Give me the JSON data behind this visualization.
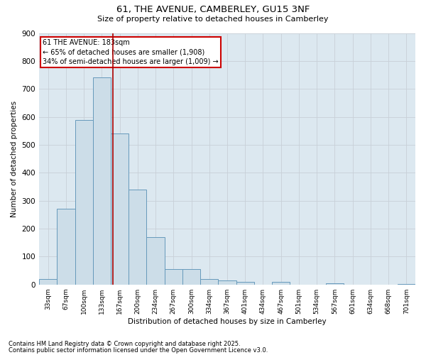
{
  "title1": "61, THE AVENUE, CAMBERLEY, GU15 3NF",
  "title2": "Size of property relative to detached houses in Camberley",
  "xlabel": "Distribution of detached houses by size in Camberley",
  "ylabel": "Number of detached properties",
  "categories": [
    "33sqm",
    "67sqm",
    "100sqm",
    "133sqm",
    "167sqm",
    "200sqm",
    "234sqm",
    "267sqm",
    "300sqm",
    "334sqm",
    "367sqm",
    "401sqm",
    "434sqm",
    "467sqm",
    "501sqm",
    "534sqm",
    "567sqm",
    "601sqm",
    "634sqm",
    "668sqm",
    "701sqm"
  ],
  "values": [
    20,
    270,
    590,
    740,
    540,
    340,
    170,
    55,
    55,
    20,
    14,
    10,
    0,
    10,
    0,
    0,
    5,
    0,
    0,
    0,
    3
  ],
  "bar_color": "#ccdde8",
  "bar_edge_color": "#6699bb",
  "grid_color": "#c8d0d8",
  "bg_color": "#dce8f0",
  "vline_color": "#aa0000",
  "annotation_text": "61 THE AVENUE: 183sqm\n← 65% of detached houses are smaller (1,908)\n34% of semi-detached houses are larger (1,009) →",
  "annotation_box_color": "#cc0000",
  "footnote1": "Contains HM Land Registry data © Crown copyright and database right 2025.",
  "footnote2": "Contains public sector information licensed under the Open Government Licence v3.0.",
  "ylim": [
    0,
    900
  ],
  "yticks": [
    0,
    100,
    200,
    300,
    400,
    500,
    600,
    700,
    800,
    900
  ],
  "vline_pos": 3.6
}
